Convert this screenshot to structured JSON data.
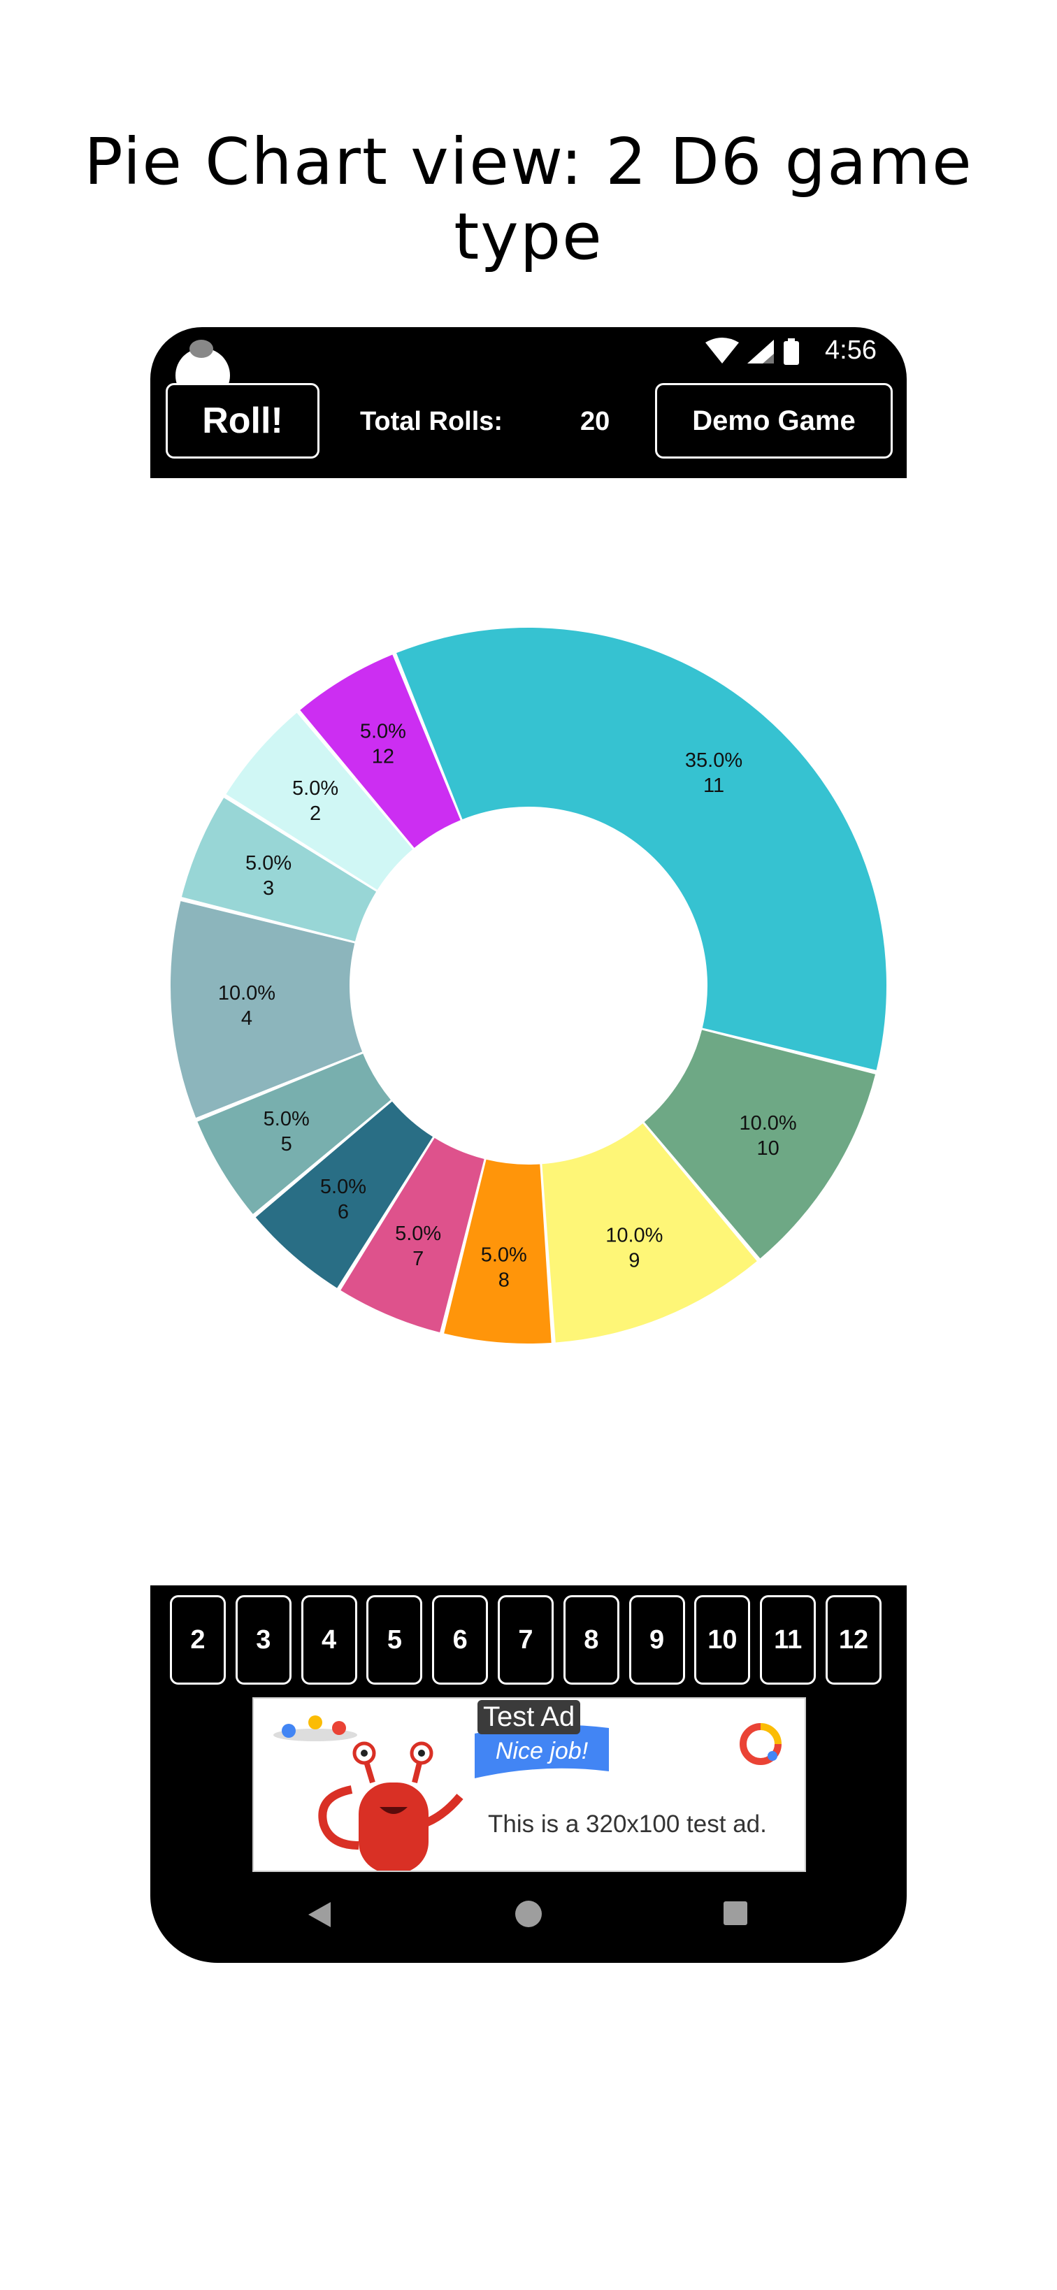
{
  "page_title": "Pie Chart view: 2 D6 game type",
  "status_bar": {
    "time": "4:56"
  },
  "toolbar": {
    "roll_label": "Roll!",
    "total_rolls_label": "Total Rolls:",
    "total_rolls_value": "20",
    "demo_label": "Demo Game"
  },
  "chart_data": {
    "type": "pie",
    "title": "",
    "slices": [
      {
        "label": "11",
        "percent": "35.0%",
        "value": 35,
        "color": "#36c2d1"
      },
      {
        "label": "12",
        "percent": "5.0%",
        "value": 5,
        "color": "#cc2ef2"
      },
      {
        "label": "2",
        "percent": "5.0%",
        "value": 5,
        "color": "#d0f7f5"
      },
      {
        "label": "3",
        "percent": "5.0%",
        "value": 5,
        "color": "#98d6d6"
      },
      {
        "label": "4",
        "percent": "10.0%",
        "value": 10,
        "color": "#8cb5bc"
      },
      {
        "label": "5",
        "percent": "5.0%",
        "value": 5,
        "color": "#78afae"
      },
      {
        "label": "6",
        "percent": "5.0%",
        "value": 5,
        "color": "#296e85"
      },
      {
        "label": "7",
        "percent": "5.0%",
        "value": 5,
        "color": "#de528c"
      },
      {
        "label": "8",
        "percent": "5.0%",
        "value": 5,
        "color": "#ff950a"
      },
      {
        "label": "9",
        "percent": "10.0%",
        "value": 10,
        "color": "#fef677"
      },
      {
        "label": "10",
        "percent": "10.0%",
        "value": 10,
        "color": "#6ea885"
      }
    ]
  },
  "number_buttons": [
    "2",
    "3",
    "4",
    "5",
    "6",
    "7",
    "8",
    "9",
    "10",
    "11",
    "12"
  ],
  "ad": {
    "badge": "Test Ad",
    "ribbon_text": "Nice job!",
    "text": "This is a 320x100 test ad."
  },
  "nav_bar": {
    "back_icon": "back-triangle-icon",
    "home_icon": "home-circle-icon",
    "recents_icon": "recents-square-icon"
  }
}
